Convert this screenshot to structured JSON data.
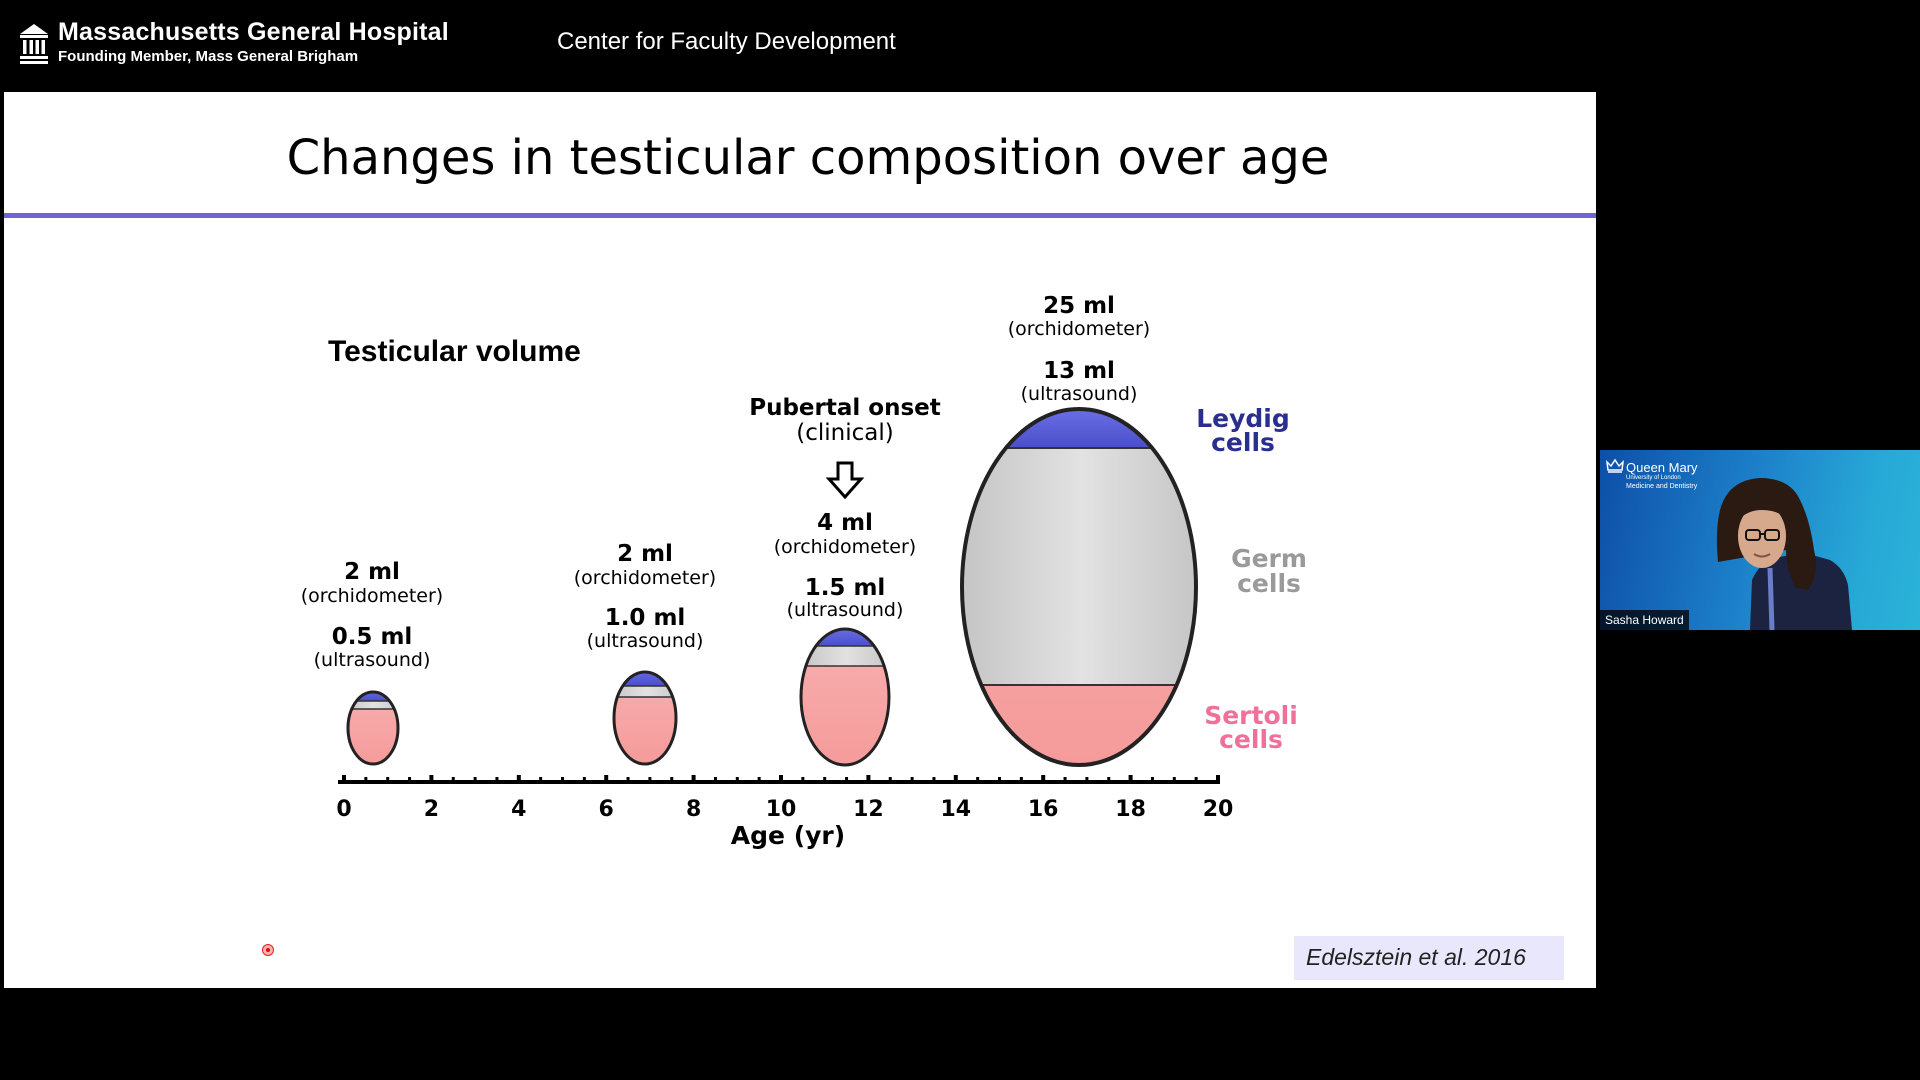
{
  "header": {
    "org_name": "Massachusetts General Hospital",
    "org_subtitle": "Founding Member, Mass General Brigham",
    "center_title": "Center for Faculty Development",
    "logo_icon": "hospital-columns-icon"
  },
  "slide": {
    "title": "Changes in testicular composition over age",
    "rule_color": "#6e64d2",
    "diagram_heading": "Testicular volume",
    "pubertal_onset": {
      "line1": "Pubertal onset",
      "line2": "(clinical)"
    },
    "markers": [
      {
        "top_value": "2 ml",
        "top_label": "(orchidometer)",
        "bottom_value": "0.5 ml",
        "bottom_label": "(ultrasound)"
      },
      {
        "top_value": "2 ml",
        "top_label": "(orchidometer)",
        "bottom_value": "1.0 ml",
        "bottom_label": "(ultrasound)"
      },
      {
        "top_value": "4 ml",
        "top_label": "(orchidometer)",
        "bottom_value": "1.5 ml",
        "bottom_label": "(ultrasound)"
      },
      {
        "top_value": "25 ml",
        "top_label": "(orchidometer)",
        "bottom_value": "13 ml",
        "bottom_label": "(ultrasound)"
      }
    ],
    "legend": {
      "leydig": {
        "line1": "Leydig",
        "line2": "cells",
        "color": "#2a2f8f"
      },
      "germ": {
        "line1": "Germ",
        "line2": "cells",
        "color": "#9a9a9a"
      },
      "sertoli": {
        "line1": "Sertoli",
        "line2": "cells",
        "color": "#f0709a"
      }
    },
    "axis": {
      "label": "Age (yr)",
      "ticks": [
        "0",
        "2",
        "4",
        "6",
        "8",
        "10",
        "12",
        "14",
        "16",
        "18",
        "20"
      ]
    },
    "citation": "Edelsztein et al. 2016"
  },
  "video": {
    "institution": "Queen Mary",
    "institution_sub1": "University of London",
    "institution_sub2": "Medicine and Dentistry",
    "participant_name": "Sasha Howard",
    "crown_icon": "crown-icon"
  },
  "colors": {
    "background": "#000000",
    "slide_bg": "#ffffff",
    "leydig_fill": "#5a5fd8",
    "germ_fill": "#c8c8c8",
    "sertoli_fill": "#f7a0a0"
  }
}
